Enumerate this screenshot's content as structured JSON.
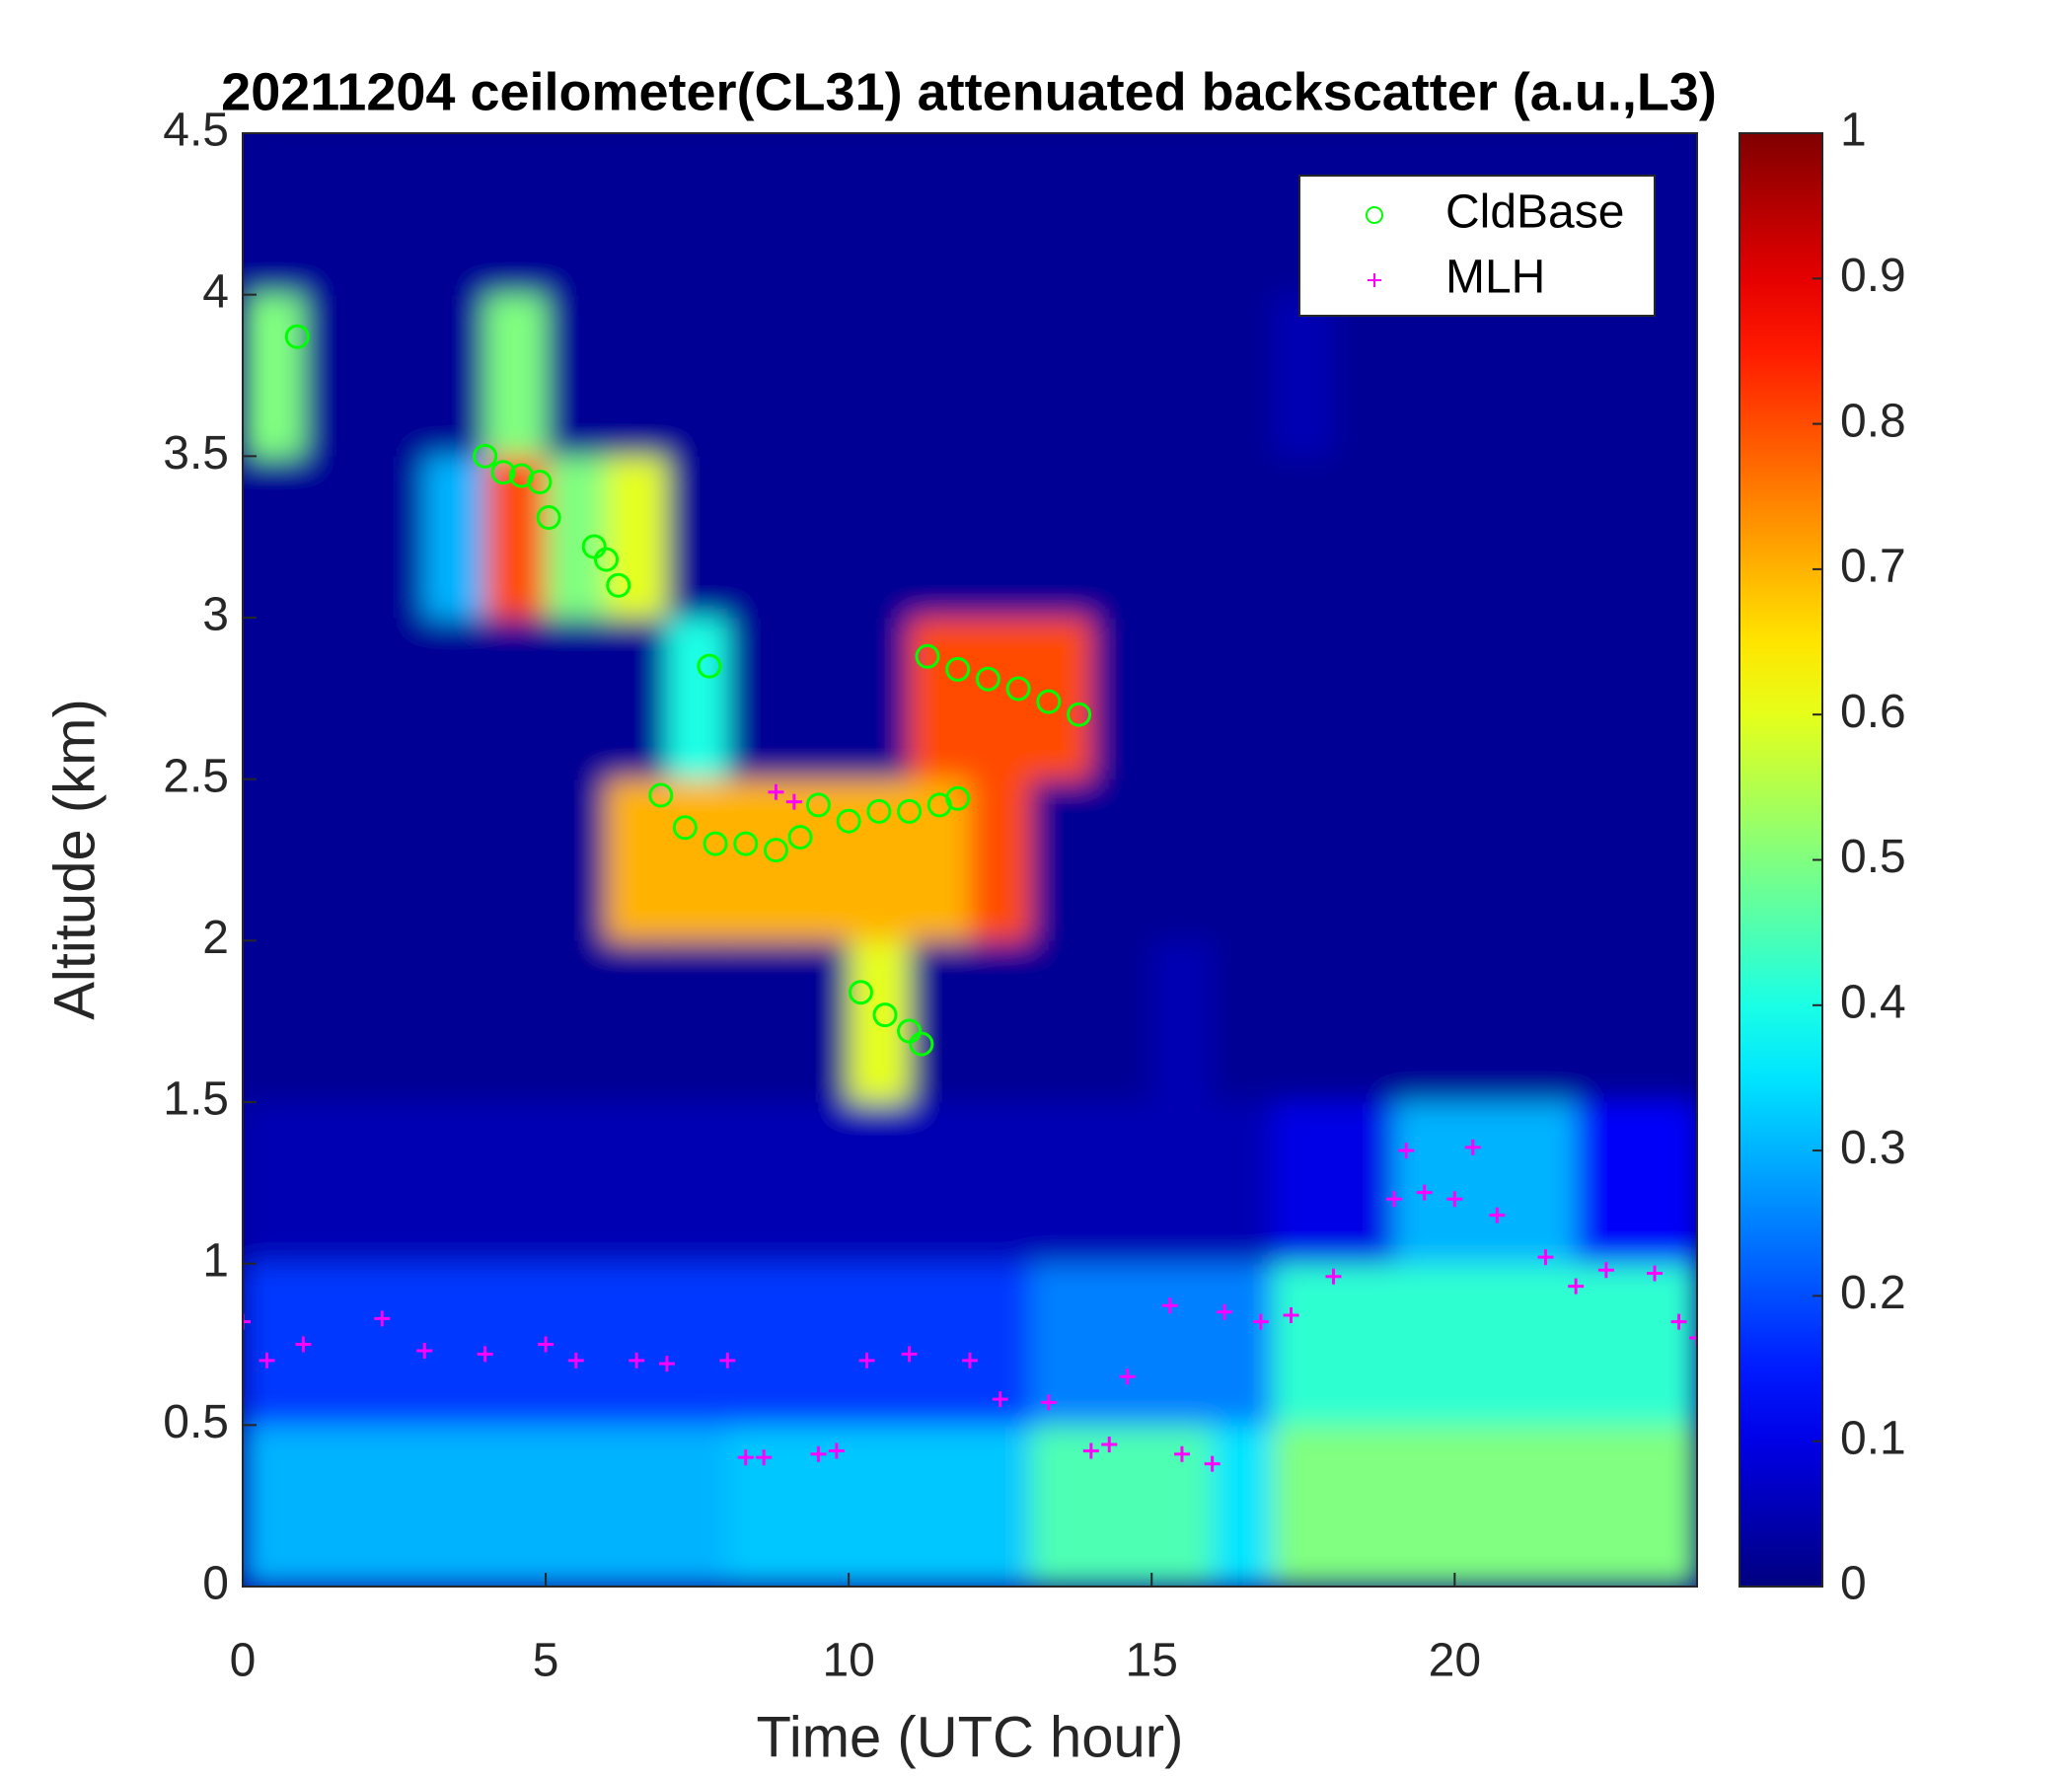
{
  "chart_data": {
    "type": "heatmap",
    "title": "20211204 ceilometer(CL31) attenuated backscatter (a.u.,L3)",
    "x_label": "Time (UTC hour)",
    "y_label": "Altitude (km)",
    "xlim": [
      0,
      24
    ],
    "xticks": [
      0,
      5,
      10,
      15,
      20
    ],
    "ylim": [
      0,
      4.5
    ],
    "yticks": [
      0,
      0.5,
      1,
      1.5,
      2,
      2.5,
      3,
      3.5,
      4,
      4.5
    ],
    "colormap": "jet",
    "clim": [
      0,
      1
    ],
    "cticks": [
      0,
      0.1,
      0.2,
      0.3,
      0.4,
      0.5,
      0.6,
      0.7,
      0.8,
      0.9,
      1
    ],
    "z": [
      [
        0.3,
        0.3,
        0.3,
        0.3,
        0.3,
        0.3,
        0.3,
        0.3,
        0.32,
        0.32,
        0.32,
        0.32,
        0.32,
        0.45,
        0.45,
        0.45,
        0.35,
        0.5,
        0.5,
        0.5,
        0.5,
        0.5,
        0.5,
        0.5
      ],
      [
        0.18,
        0.18,
        0.18,
        0.18,
        0.18,
        0.18,
        0.18,
        0.18,
        0.18,
        0.18,
        0.18,
        0.18,
        0.18,
        0.25,
        0.25,
        0.25,
        0.25,
        0.42,
        0.42,
        0.42,
        0.42,
        0.42,
        0.42,
        0.42
      ],
      [
        0.05,
        0.05,
        0.05,
        0.05,
        0.05,
        0.05,
        0.05,
        0.05,
        0.05,
        0.05,
        0.05,
        0.05,
        0.05,
        0.05,
        0.05,
        0.05,
        0.05,
        0.1,
        0.1,
        0.3,
        0.3,
        0.3,
        0.12,
        0.12
      ],
      [
        0.02,
        0.02,
        0.02,
        0.02,
        0.02,
        0.02,
        0.02,
        0.02,
        0.02,
        0.02,
        0.6,
        0.02,
        0.02,
        0.02,
        0.02,
        0.05,
        0.02,
        0.02,
        0.02,
        0.02,
        0.02,
        0.02,
        0.02,
        0.02
      ],
      [
        0.02,
        0.02,
        0.02,
        0.02,
        0.02,
        0.02,
        0.7,
        0.7,
        0.7,
        0.7,
        0.7,
        0.7,
        0.8,
        0.02,
        0.02,
        0.02,
        0.02,
        0.02,
        0.02,
        0.02,
        0.02,
        0.02,
        0.02,
        0.02
      ],
      [
        0.02,
        0.02,
        0.02,
        0.02,
        0.02,
        0.02,
        0.02,
        0.4,
        0.02,
        0.02,
        0.02,
        0.8,
        0.8,
        0.8,
        0.02,
        0.02,
        0.02,
        0.02,
        0.02,
        0.02,
        0.02,
        0.02,
        0.02,
        0.02
      ],
      [
        0.02,
        0.02,
        0.02,
        0.3,
        0.8,
        0.5,
        0.6,
        0.02,
        0.02,
        0.02,
        0.02,
        0.02,
        0.02,
        0.02,
        0.02,
        0.02,
        0.02,
        0.02,
        0.02,
        0.02,
        0.02,
        0.02,
        0.02,
        0.02
      ],
      [
        0.5,
        0.02,
        0.02,
        0.02,
        0.5,
        0.02,
        0.02,
        0.02,
        0.02,
        0.02,
        0.02,
        0.02,
        0.02,
        0.02,
        0.02,
        0.02,
        0.02,
        0.05,
        0.02,
        0.02,
        0.02,
        0.02,
        0.02,
        0.02
      ],
      [
        0.02,
        0.02,
        0.02,
        0.02,
        0.02,
        0.02,
        0.02,
        0.02,
        0.02,
        0.02,
        0.02,
        0.02,
        0.02,
        0.02,
        0.02,
        0.02,
        0.02,
        0.02,
        0.02,
        0.02,
        0.02,
        0.02,
        0.02,
        0.02
      ]
    ],
    "legend": "upper right",
    "series": [
      {
        "name": "CldBase",
        "color": "#00ff00",
        "marker": "o",
        "x": [
          0.9,
          4,
          4.3,
          4.6,
          4.9,
          5.05,
          5.8,
          6,
          6.2,
          7.7,
          6.9,
          7.3,
          7.8,
          8.3,
          8.8,
          9.2,
          9.5,
          10,
          10.5,
          11,
          11.5,
          11.8,
          10.2,
          10.6,
          11,
          11.2,
          11.3,
          11.8,
          12.3,
          12.8,
          13.3,
          13.8
        ],
        "values": [
          3.87,
          3.5,
          3.45,
          3.44,
          3.42,
          3.31,
          3.22,
          3.18,
          3.1,
          2.85,
          2.45,
          2.35,
          2.3,
          2.3,
          2.28,
          2.32,
          2.42,
          2.37,
          2.4,
          2.4,
          2.42,
          2.44,
          1.84,
          1.77,
          1.72,
          1.68,
          2.88,
          2.84,
          2.81,
          2.78,
          2.74,
          2.7
        ]
      },
      {
        "name": "MLH",
        "color": "#ff00ff",
        "marker": "+",
        "x": [
          0,
          0.4,
          1,
          2.3,
          3,
          4,
          5,
          5.5,
          6.5,
          7,
          8,
          8.3,
          8.6,
          8.8,
          9.1,
          9.5,
          9.8,
          10.3,
          11,
          12,
          12.5,
          13.3,
          14,
          14.3,
          14.6,
          15.3,
          15.5,
          16,
          16.2,
          16.8,
          17.3,
          18,
          19,
          19.2,
          19.5,
          20,
          20.3,
          20.7,
          21.5,
          22,
          22.5,
          23.3,
          23.7,
          24
        ],
        "values": [
          0.82,
          0.7,
          0.75,
          0.83,
          0.73,
          0.72,
          0.75,
          0.7,
          0.7,
          0.69,
          0.7,
          0.4,
          0.4,
          2.46,
          2.43,
          0.41,
          0.42,
          0.7,
          0.72,
          0.7,
          0.58,
          0.57,
          0.42,
          0.44,
          0.65,
          0.87,
          0.41,
          0.38,
          0.85,
          0.82,
          0.84,
          0.96,
          1.2,
          1.35,
          1.22,
          1.2,
          1.36,
          1.15,
          1.02,
          0.93,
          0.98,
          0.97,
          0.82,
          0.77
        ]
      }
    ]
  }
}
